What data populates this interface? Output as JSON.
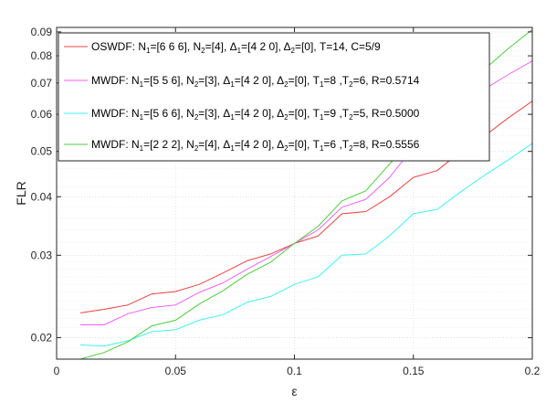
{
  "chart_data": {
    "type": "line",
    "xlabel": "ε",
    "ylabel": "FLR",
    "xlim": [
      0,
      0.2
    ],
    "ylim": [
      0.018,
      0.092
    ],
    "yscale": "log",
    "grid": true,
    "legend_position": "top-left",
    "x_ticks": [
      0,
      0.05,
      0.1,
      0.15,
      0.2
    ],
    "x_tick_labels": [
      "0",
      "0.05",
      "0.1",
      "0.15",
      "0.2"
    ],
    "y_ticks": [
      0.02,
      0.03,
      0.04,
      0.05,
      0.06,
      0.07,
      0.08,
      0.09
    ],
    "y_tick_labels": [
      "0.02",
      "0.03",
      "0.04",
      "0.05",
      "0.06",
      "0.07",
      "0.08",
      "0.09"
    ],
    "x": [
      0.01,
      0.02,
      0.03,
      0.04,
      0.05,
      0.06,
      0.07,
      0.08,
      0.09,
      0.1,
      0.11,
      0.12,
      0.13,
      0.14,
      0.15,
      0.16,
      0.17,
      0.18,
      0.19,
      0.2
    ],
    "series": [
      {
        "name": "OSWDF: N1=[6 6 6], N2=[4], Δ1=[4 2 0], Δ2=[0], T=14, C=5/9",
        "color": "#e8433e",
        "values": [
          0.0226,
          0.023,
          0.0235,
          0.0248,
          0.0251,
          0.026,
          0.0275,
          0.0292,
          0.0302,
          0.0318,
          0.033,
          0.0368,
          0.0372,
          0.04,
          0.044,
          0.0455,
          0.05,
          0.054,
          0.059,
          0.064
        ]
      },
      {
        "name": "MWDF: N1=[5 5 6], N2=[3], Δ1=[4 2 0], Δ2=[0], T1=8 ,T2=6, R=0.5714",
        "color": "#f060f0",
        "values": [
          0.0213,
          0.0213,
          0.0225,
          0.0232,
          0.0235,
          0.025,
          0.0262,
          0.028,
          0.0298,
          0.0318,
          0.034,
          0.038,
          0.0395,
          0.044,
          0.051,
          0.056,
          0.062,
          0.068,
          0.073,
          0.078
        ]
      },
      {
        "name": "MWDF: N1=[5 6 6], N2=[3], Δ1=[4 2 0], Δ2=[0], T1=9 ,T2=5, R=0.5000",
        "color": "#40f0f0",
        "values": [
          0.0193,
          0.0192,
          0.0197,
          0.0206,
          0.0208,
          0.0218,
          0.0224,
          0.0238,
          0.0245,
          0.026,
          0.027,
          0.03,
          0.0302,
          0.033,
          0.0368,
          0.0376,
          0.041,
          0.0445,
          0.048,
          0.052
        ]
      },
      {
        "name": "MWDF: N1=[2 2 2], N2=[4], Δ1=[4 2 0], Δ2=[0], T1=6 ,T2=8, R=0.5556",
        "color": "#4ccc3c",
        "values": [
          0.018,
          0.0186,
          0.0196,
          0.0212,
          0.0218,
          0.0236,
          0.0252,
          0.0273,
          0.029,
          0.0318,
          0.0346,
          0.0392,
          0.0412,
          0.047,
          0.053,
          0.06,
          0.068,
          0.075,
          0.083,
          0.091
        ]
      }
    ],
    "legend_entries": [
      {
        "parts": [
          {
            "t": "OSWDF: N"
          },
          {
            "t": "1",
            "sub": true
          },
          {
            "t": "=[6  6  6], N"
          },
          {
            "t": "2",
            "sub": true
          },
          {
            "t": "=[4], Δ"
          },
          {
            "t": "1",
            "sub": true
          },
          {
            "t": "=[4  2  0], Δ"
          },
          {
            "t": "2",
            "sub": true
          },
          {
            "t": "=[0], T=14, C=5/9"
          }
        ]
      },
      {
        "parts": [
          {
            "t": "MWDF: N"
          },
          {
            "t": "1",
            "sub": true
          },
          {
            "t": "=[5  5  6], N"
          },
          {
            "t": "2",
            "sub": true
          },
          {
            "t": "=[3], Δ"
          },
          {
            "t": "1",
            "sub": true
          },
          {
            "t": "=[4  2  0], Δ"
          },
          {
            "t": "2",
            "sub": true
          },
          {
            "t": "=[0], T"
          },
          {
            "t": "1",
            "sub": true
          },
          {
            "t": "=8 ,T"
          },
          {
            "t": "2",
            "sub": true
          },
          {
            "t": "=6, R=0.5714"
          }
        ]
      },
      {
        "parts": [
          {
            "t": "MWDF: N"
          },
          {
            "t": "1",
            "sub": true
          },
          {
            "t": "=[5  6  6], N"
          },
          {
            "t": "2",
            "sub": true
          },
          {
            "t": "=[3], Δ"
          },
          {
            "t": "1",
            "sub": true
          },
          {
            "t": "=[4  2  0], Δ"
          },
          {
            "t": "2",
            "sub": true
          },
          {
            "t": "=[0], T"
          },
          {
            "t": "1",
            "sub": true
          },
          {
            "t": "=9 ,T"
          },
          {
            "t": "2",
            "sub": true
          },
          {
            "t": "=5, R=0.5000"
          }
        ]
      },
      {
        "parts": [
          {
            "t": "MWDF: N"
          },
          {
            "t": "1",
            "sub": true
          },
          {
            "t": "=[2  2  2], N"
          },
          {
            "t": "2",
            "sub": true
          },
          {
            "t": "=[4], Δ"
          },
          {
            "t": "1",
            "sub": true
          },
          {
            "t": "=[4  2  0], Δ"
          },
          {
            "t": "2",
            "sub": true
          },
          {
            "t": "=[0], T"
          },
          {
            "t": "1",
            "sub": true
          },
          {
            "t": "=6 ,T"
          },
          {
            "t": "2",
            "sub": true
          },
          {
            "t": "=8, R=0.5556"
          }
        ]
      }
    ]
  }
}
